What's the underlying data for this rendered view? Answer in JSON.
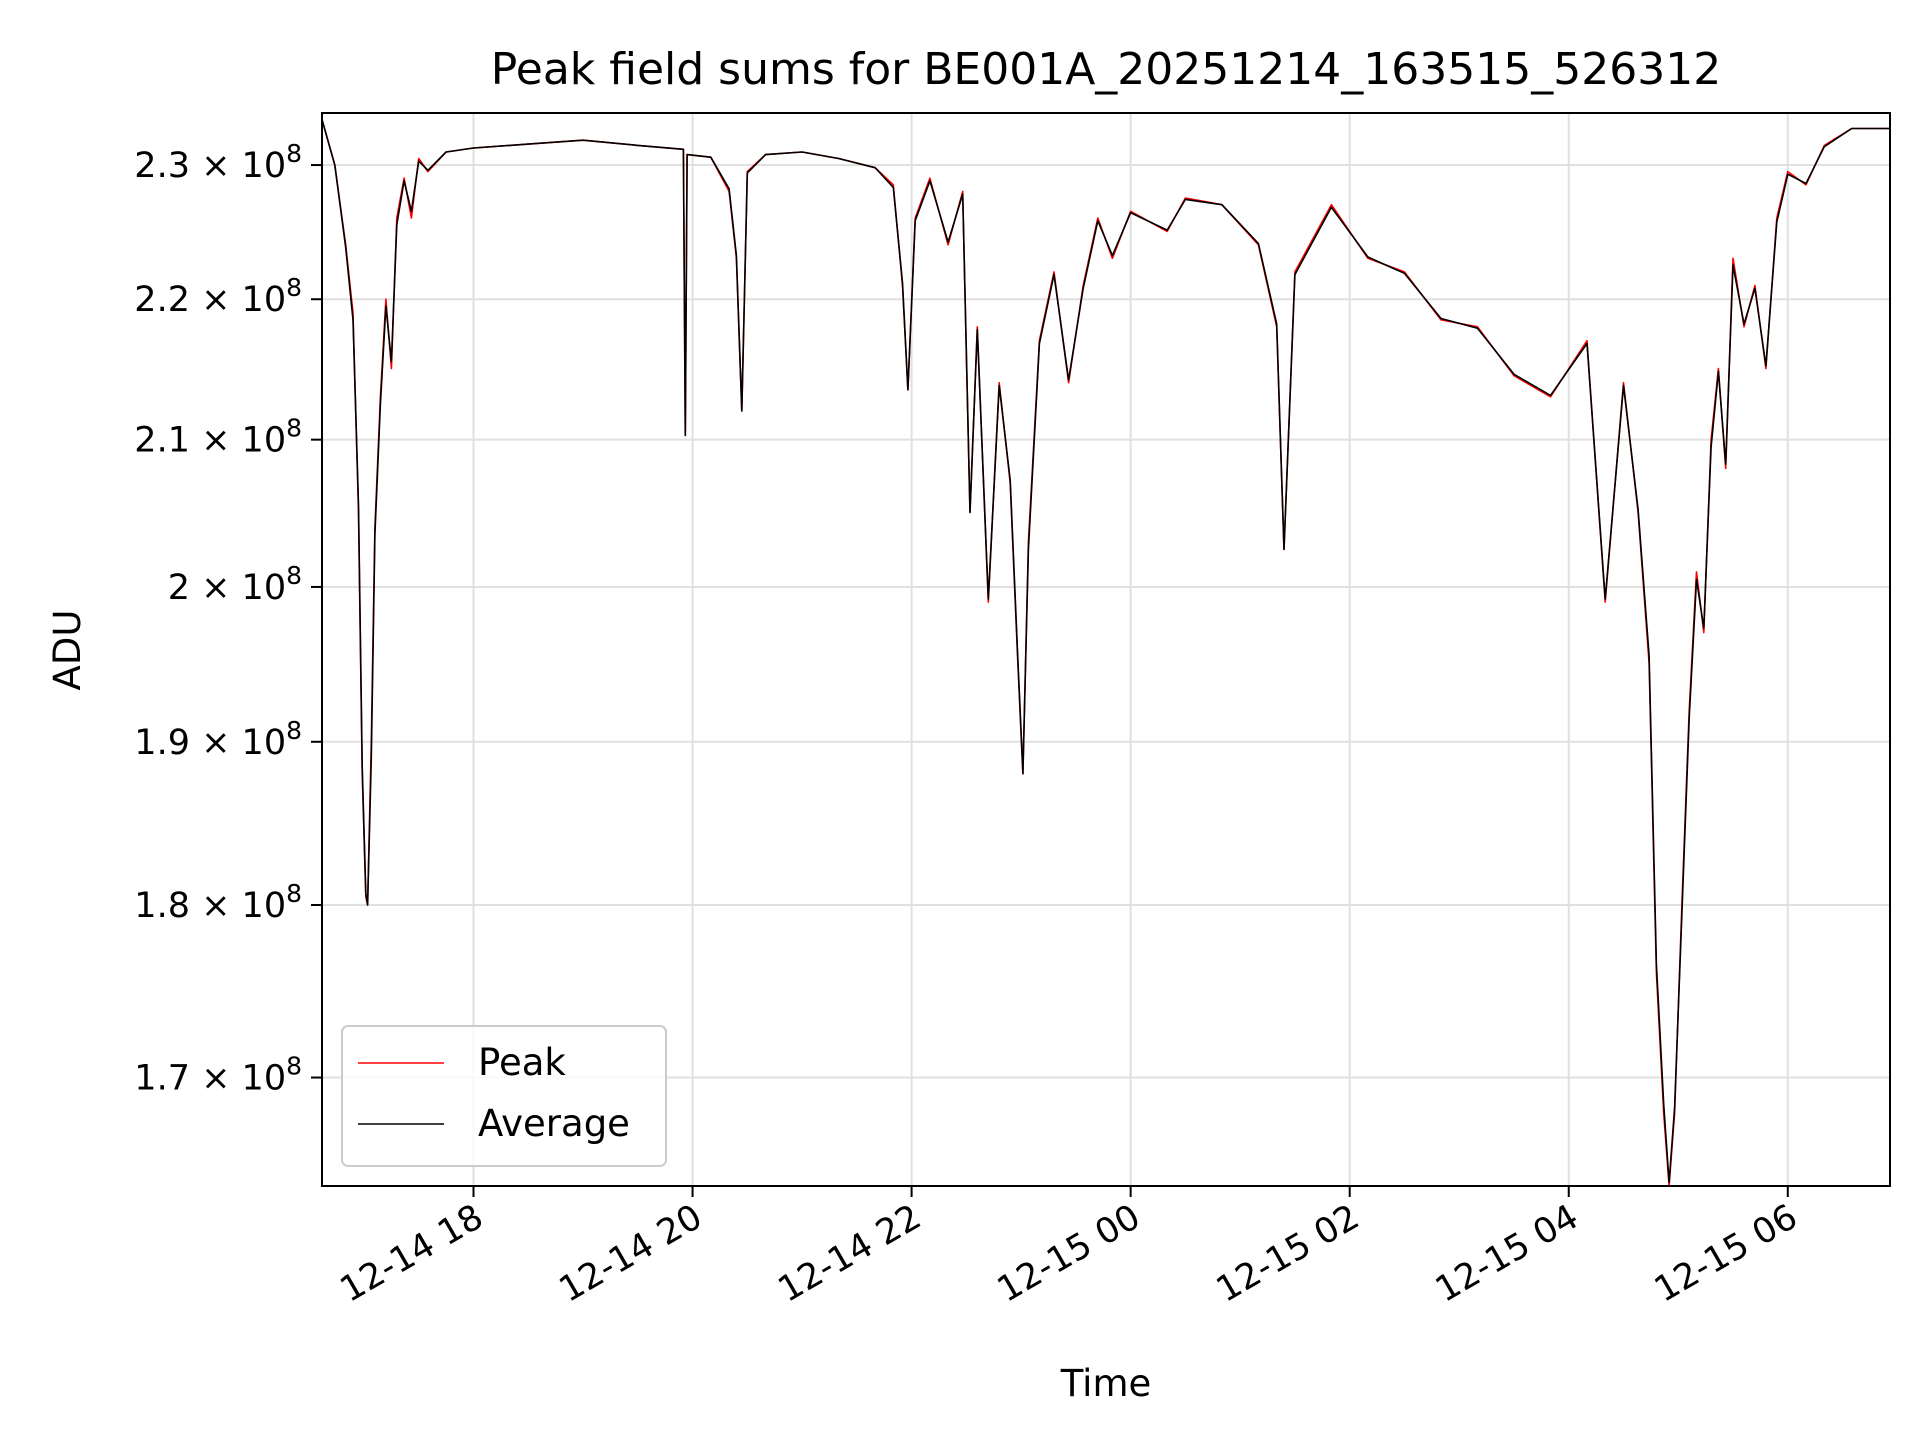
{
  "chart_data": {
    "type": "line",
    "title": "Peak field sums for BE001A_20251214_163515_526312",
    "xlabel": "Time",
    "ylabel": "ADU",
    "y_scale": "log",
    "ylim": [
      164000000,
      234000000
    ],
    "xlim": [
      "2025-12-14 16:37",
      "2025-12-15 06:56"
    ],
    "grid": true,
    "legend_position": "lower-left",
    "x_ticks": [
      {
        "value": "2025-12-14 18:00",
        "label": "12-14 18"
      },
      {
        "value": "2025-12-14 20:00",
        "label": "12-14 20"
      },
      {
        "value": "2025-12-14 22:00",
        "label": "12-14 22"
      },
      {
        "value": "2025-12-15 00:00",
        "label": "12-15 00"
      },
      {
        "value": "2025-12-15 02:00",
        "label": "12-15 02"
      },
      {
        "value": "2025-12-15 04:00",
        "label": "12-15 04"
      },
      {
        "value": "2025-12-15 06:00",
        "label": "12-15 06"
      }
    ],
    "y_ticks": [
      {
        "value": 170000000,
        "mantissa": "1.7",
        "exponent": "8"
      },
      {
        "value": 180000000,
        "mantissa": "1.8",
        "exponent": "8"
      },
      {
        "value": 190000000,
        "mantissa": "1.9",
        "exponent": "8"
      },
      {
        "value": 200000000,
        "mantissa": "2",
        "exponent": "8"
      },
      {
        "value": 210000000,
        "mantissa": "2.1",
        "exponent": "8"
      },
      {
        "value": 220000000,
        "mantissa": "2.2",
        "exponent": "8"
      },
      {
        "value": 230000000,
        "mantissa": "2.3",
        "exponent": "8"
      }
    ],
    "series": [
      {
        "name": "Peak",
        "color": "#ff0000",
        "points": [
          [
            "2025-12-14 16:37",
            233500000
          ],
          [
            "2025-12-14 16:44",
            230000000
          ],
          [
            "2025-12-14 16:50",
            224000000
          ],
          [
            "2025-12-14 16:54",
            219000000
          ],
          [
            "2025-12-14 16:57",
            205000000
          ],
          [
            "2025-12-14 16:59",
            188000000
          ],
          [
            "2025-12-14 17:01",
            180500000
          ],
          [
            "2025-12-14 17:02",
            180000000
          ],
          [
            "2025-12-14 17:04",
            190000000
          ],
          [
            "2025-12-14 17:06",
            204000000
          ],
          [
            "2025-12-14 17:09",
            213000000
          ],
          [
            "2025-12-14 17:12",
            220000000
          ],
          [
            "2025-12-14 17:15",
            215000000
          ],
          [
            "2025-12-14 17:18",
            226000000
          ],
          [
            "2025-12-14 17:22",
            229000000
          ],
          [
            "2025-12-14 17:26",
            226000000
          ],
          [
            "2025-12-14 17:30",
            230500000
          ],
          [
            "2025-12-14 17:35",
            229500000
          ],
          [
            "2025-12-14 17:45",
            231000000
          ],
          [
            "2025-12-14 18:00",
            231300000
          ],
          [
            "2025-12-14 18:30",
            231600000
          ],
          [
            "2025-12-14 19:00",
            231900000
          ],
          [
            "2025-12-14 19:30",
            231500000
          ],
          [
            "2025-12-14 19:55",
            231200000
          ],
          [
            "2025-12-14 19:56",
            210300000
          ],
          [
            "2025-12-14 19:57",
            230800000
          ],
          [
            "2025-12-14 20:10",
            230600000
          ],
          [
            "2025-12-14 20:20",
            228000000
          ],
          [
            "2025-12-14 20:24",
            223000000
          ],
          [
            "2025-12-14 20:27",
            212000000
          ],
          [
            "2025-12-14 20:30",
            229500000
          ],
          [
            "2025-12-14 20:40",
            230800000
          ],
          [
            "2025-12-14 21:00",
            231000000
          ],
          [
            "2025-12-14 21:20",
            230500000
          ],
          [
            "2025-12-14 21:40",
            229800000
          ],
          [
            "2025-12-14 21:50",
            228500000
          ],
          [
            "2025-12-14 21:55",
            221000000
          ],
          [
            "2025-12-14 21:58",
            213500000
          ],
          [
            "2025-12-14 22:02",
            226000000
          ],
          [
            "2025-12-14 22:10",
            229000000
          ],
          [
            "2025-12-14 22:20",
            224000000
          ],
          [
            "2025-12-14 22:28",
            228000000
          ],
          [
            "2025-12-14 22:32",
            205000000
          ],
          [
            "2025-12-14 22:36",
            218000000
          ],
          [
            "2025-12-14 22:42",
            199000000
          ],
          [
            "2025-12-14 22:48",
            214000000
          ],
          [
            "2025-12-14 22:54",
            207000000
          ],
          [
            "2025-12-14 22:58",
            195500000
          ],
          [
            "2025-12-14 23:01",
            188000000
          ],
          [
            "2025-12-14 23:04",
            203000000
          ],
          [
            "2025-12-14 23:10",
            217000000
          ],
          [
            "2025-12-14 23:18",
            222000000
          ],
          [
            "2025-12-14 23:26",
            214000000
          ],
          [
            "2025-12-14 23:34",
            221000000
          ],
          [
            "2025-12-14 23:42",
            226000000
          ],
          [
            "2025-12-14 23:50",
            223000000
          ],
          [
            "2025-12-15 00:00",
            226500000
          ],
          [
            "2025-12-15 00:20",
            225000000
          ],
          [
            "2025-12-15 00:30",
            227500000
          ],
          [
            "2025-12-15 00:50",
            227000000
          ],
          [
            "2025-12-15 01:10",
            224000000
          ],
          [
            "2025-12-15 01:20",
            218000000
          ],
          [
            "2025-12-15 01:24",
            202500000
          ],
          [
            "2025-12-15 01:30",
            222000000
          ],
          [
            "2025-12-15 01:50",
            227000000
          ],
          [
            "2025-12-15 02:10",
            223000000
          ],
          [
            "2025-12-15 02:30",
            222000000
          ],
          [
            "2025-12-15 02:50",
            218500000
          ],
          [
            "2025-12-15 03:10",
            218000000
          ],
          [
            "2025-12-15 03:30",
            214500000
          ],
          [
            "2025-12-15 03:50",
            213000000
          ],
          [
            "2025-12-15 04:10",
            217000000
          ],
          [
            "2025-12-15 04:20",
            199000000
          ],
          [
            "2025-12-15 04:30",
            214000000
          ],
          [
            "2025-12-15 04:38",
            205000000
          ],
          [
            "2025-12-15 04:44",
            195000000
          ],
          [
            "2025-12-15 04:48",
            176000000
          ],
          [
            "2025-12-15 04:52",
            168000000
          ],
          [
            "2025-12-15 04:55",
            164000000
          ],
          [
            "2025-12-15 04:58",
            168000000
          ],
          [
            "2025-12-15 05:02",
            180000000
          ],
          [
            "2025-12-15 05:06",
            192000000
          ],
          [
            "2025-12-15 05:10",
            201000000
          ],
          [
            "2025-12-15 05:14",
            197000000
          ],
          [
            "2025-12-15 05:18",
            210000000
          ],
          [
            "2025-12-15 05:22",
            215000000
          ],
          [
            "2025-12-15 05:26",
            208000000
          ],
          [
            "2025-12-15 05:30",
            223000000
          ],
          [
            "2025-12-15 05:36",
            218000000
          ],
          [
            "2025-12-15 05:42",
            221000000
          ],
          [
            "2025-12-15 05:48",
            215000000
          ],
          [
            "2025-12-15 05:54",
            226000000
          ],
          [
            "2025-12-15 06:00",
            229500000
          ],
          [
            "2025-12-15 06:10",
            228500000
          ],
          [
            "2025-12-15 06:20",
            231500000
          ],
          [
            "2025-12-15 06:35",
            232800000
          ],
          [
            "2025-12-15 06:56",
            232800000
          ]
        ]
      },
      {
        "name": "Average",
        "color": "#000000",
        "points": [
          [
            "2025-12-14 16:37",
            233500000
          ],
          [
            "2025-12-14 16:44",
            230000000
          ],
          [
            "2025-12-14 16:50",
            223800000
          ],
          [
            "2025-12-14 16:54",
            218500000
          ],
          [
            "2025-12-14 16:57",
            205500000
          ],
          [
            "2025-12-14 16:59",
            188500000
          ],
          [
            "2025-12-14 17:01",
            180700000
          ],
          [
            "2025-12-14 17:02",
            180000000
          ],
          [
            "2025-12-14 17:04",
            189000000
          ],
          [
            "2025-12-14 17:06",
            203500000
          ],
          [
            "2025-12-14 17:09",
            212500000
          ],
          [
            "2025-12-14 17:12",
            219500000
          ],
          [
            "2025-12-14 17:15",
            215500000
          ],
          [
            "2025-12-14 17:18",
            225500000
          ],
          [
            "2025-12-14 17:22",
            228800000
          ],
          [
            "2025-12-14 17:26",
            226500000
          ],
          [
            "2025-12-14 17:30",
            230300000
          ],
          [
            "2025-12-14 17:35",
            229600000
          ],
          [
            "2025-12-14 17:45",
            231000000
          ],
          [
            "2025-12-14 18:00",
            231300000
          ],
          [
            "2025-12-14 18:30",
            231600000
          ],
          [
            "2025-12-14 19:00",
            231900000
          ],
          [
            "2025-12-14 19:30",
            231500000
          ],
          [
            "2025-12-14 19:55",
            231200000
          ],
          [
            "2025-12-14 19:56",
            210300000
          ],
          [
            "2025-12-14 19:57",
            230800000
          ],
          [
            "2025-12-14 20:10",
            230600000
          ],
          [
            "2025-12-14 20:20",
            228200000
          ],
          [
            "2025-12-14 20:24",
            223200000
          ],
          [
            "2025-12-14 20:27",
            212000000
          ],
          [
            "2025-12-14 20:30",
            229400000
          ],
          [
            "2025-12-14 20:40",
            230800000
          ],
          [
            "2025-12-14 21:00",
            231000000
          ],
          [
            "2025-12-14 21:20",
            230500000
          ],
          [
            "2025-12-14 21:40",
            229800000
          ],
          [
            "2025-12-14 21:50",
            228300000
          ],
          [
            "2025-12-14 21:55",
            221200000
          ],
          [
            "2025-12-14 21:58",
            213500000
          ],
          [
            "2025-12-14 22:02",
            225800000
          ],
          [
            "2025-12-14 22:10",
            228800000
          ],
          [
            "2025-12-14 22:20",
            224200000
          ],
          [
            "2025-12-14 22:28",
            227800000
          ],
          [
            "2025-12-14 22:32",
            205000000
          ],
          [
            "2025-12-14 22:36",
            217800000
          ],
          [
            "2025-12-14 22:42",
            199200000
          ],
          [
            "2025-12-14 22:48",
            213800000
          ],
          [
            "2025-12-14 22:54",
            207200000
          ],
          [
            "2025-12-14 22:58",
            195800000
          ],
          [
            "2025-12-14 23:01",
            188000000
          ],
          [
            "2025-12-14 23:04",
            202500000
          ],
          [
            "2025-12-14 23:10",
            216800000
          ],
          [
            "2025-12-14 23:18",
            221800000
          ],
          [
            "2025-12-14 23:26",
            214200000
          ],
          [
            "2025-12-14 23:34",
            220800000
          ],
          [
            "2025-12-14 23:42",
            225800000
          ],
          [
            "2025-12-14 23:50",
            223200000
          ],
          [
            "2025-12-15 00:00",
            226400000
          ],
          [
            "2025-12-15 00:20",
            225100000
          ],
          [
            "2025-12-15 00:30",
            227400000
          ],
          [
            "2025-12-15 00:50",
            227000000
          ],
          [
            "2025-12-15 01:10",
            224100000
          ],
          [
            "2025-12-15 01:20",
            218200000
          ],
          [
            "2025-12-15 01:24",
            202500000
          ],
          [
            "2025-12-15 01:30",
            221800000
          ],
          [
            "2025-12-15 01:50",
            226800000
          ],
          [
            "2025-12-15 02:10",
            223100000
          ],
          [
            "2025-12-15 02:30",
            221900000
          ],
          [
            "2025-12-15 02:50",
            218600000
          ],
          [
            "2025-12-15 03:10",
            217900000
          ],
          [
            "2025-12-15 03:30",
            214600000
          ],
          [
            "2025-12-15 03:50",
            213100000
          ],
          [
            "2025-12-15 04:10",
            216800000
          ],
          [
            "2025-12-15 04:20",
            199200000
          ],
          [
            "2025-12-15 04:30",
            213800000
          ],
          [
            "2025-12-15 04:38",
            205200000
          ],
          [
            "2025-12-15 04:44",
            195500000
          ],
          [
            "2025-12-15 04:48",
            176500000
          ],
          [
            "2025-12-15 04:52",
            168500000
          ],
          [
            "2025-12-15 04:55",
            164200000
          ],
          [
            "2025-12-15 04:58",
            168300000
          ],
          [
            "2025-12-15 05:02",
            179500000
          ],
          [
            "2025-12-15 05:06",
            191500000
          ],
          [
            "2025-12-15 05:10",
            200500000
          ],
          [
            "2025-12-15 05:14",
            197300000
          ],
          [
            "2025-12-15 05:18",
            209500000
          ],
          [
            "2025-12-15 05:22",
            214800000
          ],
          [
            "2025-12-15 05:26",
            208300000
          ],
          [
            "2025-12-15 05:30",
            222500000
          ],
          [
            "2025-12-15 05:36",
            218200000
          ],
          [
            "2025-12-15 05:42",
            220800000
          ],
          [
            "2025-12-15 05:48",
            215200000
          ],
          [
            "2025-12-15 05:54",
            225700000
          ],
          [
            "2025-12-15 06:00",
            229300000
          ],
          [
            "2025-12-15 06:10",
            228600000
          ],
          [
            "2025-12-15 06:20",
            231400000
          ],
          [
            "2025-12-15 06:35",
            232800000
          ],
          [
            "2025-12-15 06:56",
            232800000
          ]
        ]
      }
    ]
  }
}
